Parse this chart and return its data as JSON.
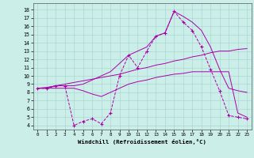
{
  "xlabel": "Windchill (Refroidissement éolien,°C)",
  "bg_color": "#cceee8",
  "grid_color": "#aad8d2",
  "line_color": "#aa00aa",
  "x_ticks": [
    0,
    1,
    2,
    3,
    4,
    5,
    6,
    7,
    8,
    9,
    10,
    11,
    12,
    13,
    14,
    15,
    16,
    17,
    18,
    19,
    20,
    21,
    22,
    23
  ],
  "y_ticks": [
    4,
    5,
    6,
    7,
    8,
    9,
    10,
    11,
    12,
    13,
    14,
    15,
    16,
    17,
    18
  ],
  "ylim": [
    3.5,
    18.8
  ],
  "xlim": [
    -0.5,
    23.5
  ],
  "series": [
    {
      "x": [
        0,
        1,
        2,
        3,
        4,
        5,
        6,
        7,
        8,
        9,
        10,
        11,
        12,
        13,
        14,
        15,
        16,
        17,
        18,
        19,
        20,
        21,
        22,
        23
      ],
      "y": [
        8.5,
        8.5,
        8.8,
        8.8,
        8.8,
        9.0,
        9.5,
        10.0,
        10.5,
        11.5,
        12.5,
        13.0,
        13.5,
        14.8,
        15.2,
        17.8,
        17.2,
        16.5,
        15.5,
        13.5,
        10.8,
        8.5,
        8.2,
        8.0
      ],
      "marker": null
    },
    {
      "x": [
        0,
        1,
        2,
        3,
        4,
        5,
        6,
        7,
        8,
        9,
        10,
        11,
        12,
        13,
        14,
        15,
        16,
        17,
        18,
        19,
        20,
        21,
        22,
        23
      ],
      "y": [
        8.5,
        8.6,
        8.8,
        9.0,
        9.2,
        9.4,
        9.6,
        9.8,
        10.0,
        10.2,
        10.5,
        10.8,
        11.0,
        11.3,
        11.5,
        11.8,
        12.0,
        12.3,
        12.5,
        12.8,
        13.0,
        13.0,
        13.2,
        13.3
      ],
      "marker": null
    },
    {
      "x": [
        0,
        1,
        2,
        3,
        4,
        5,
        6,
        7,
        8,
        9,
        10,
        11,
        12,
        13,
        14,
        15,
        16,
        17,
        18,
        19,
        20,
        21,
        22,
        23
      ],
      "y": [
        8.5,
        8.5,
        8.5,
        8.5,
        8.5,
        8.2,
        7.8,
        7.5,
        8.0,
        8.5,
        9.0,
        9.3,
        9.5,
        9.8,
        10.0,
        10.2,
        10.3,
        10.5,
        10.5,
        10.5,
        10.5,
        10.5,
        5.5,
        5.0
      ],
      "marker": null
    },
    {
      "x": [
        0,
        1,
        2,
        3,
        4,
        5,
        6,
        7,
        8,
        9,
        10,
        11,
        12,
        13,
        14,
        15,
        16,
        17,
        18,
        19,
        20,
        21,
        22,
        23
      ],
      "y": [
        8.5,
        8.5,
        8.8,
        8.8,
        4.0,
        4.5,
        4.8,
        4.2,
        5.5,
        10.0,
        12.5,
        11.0,
        13.0,
        14.8,
        15.2,
        17.8,
        16.5,
        15.5,
        13.5,
        10.8,
        8.2,
        5.2,
        5.0,
        4.8
      ],
      "marker": "+"
    }
  ]
}
